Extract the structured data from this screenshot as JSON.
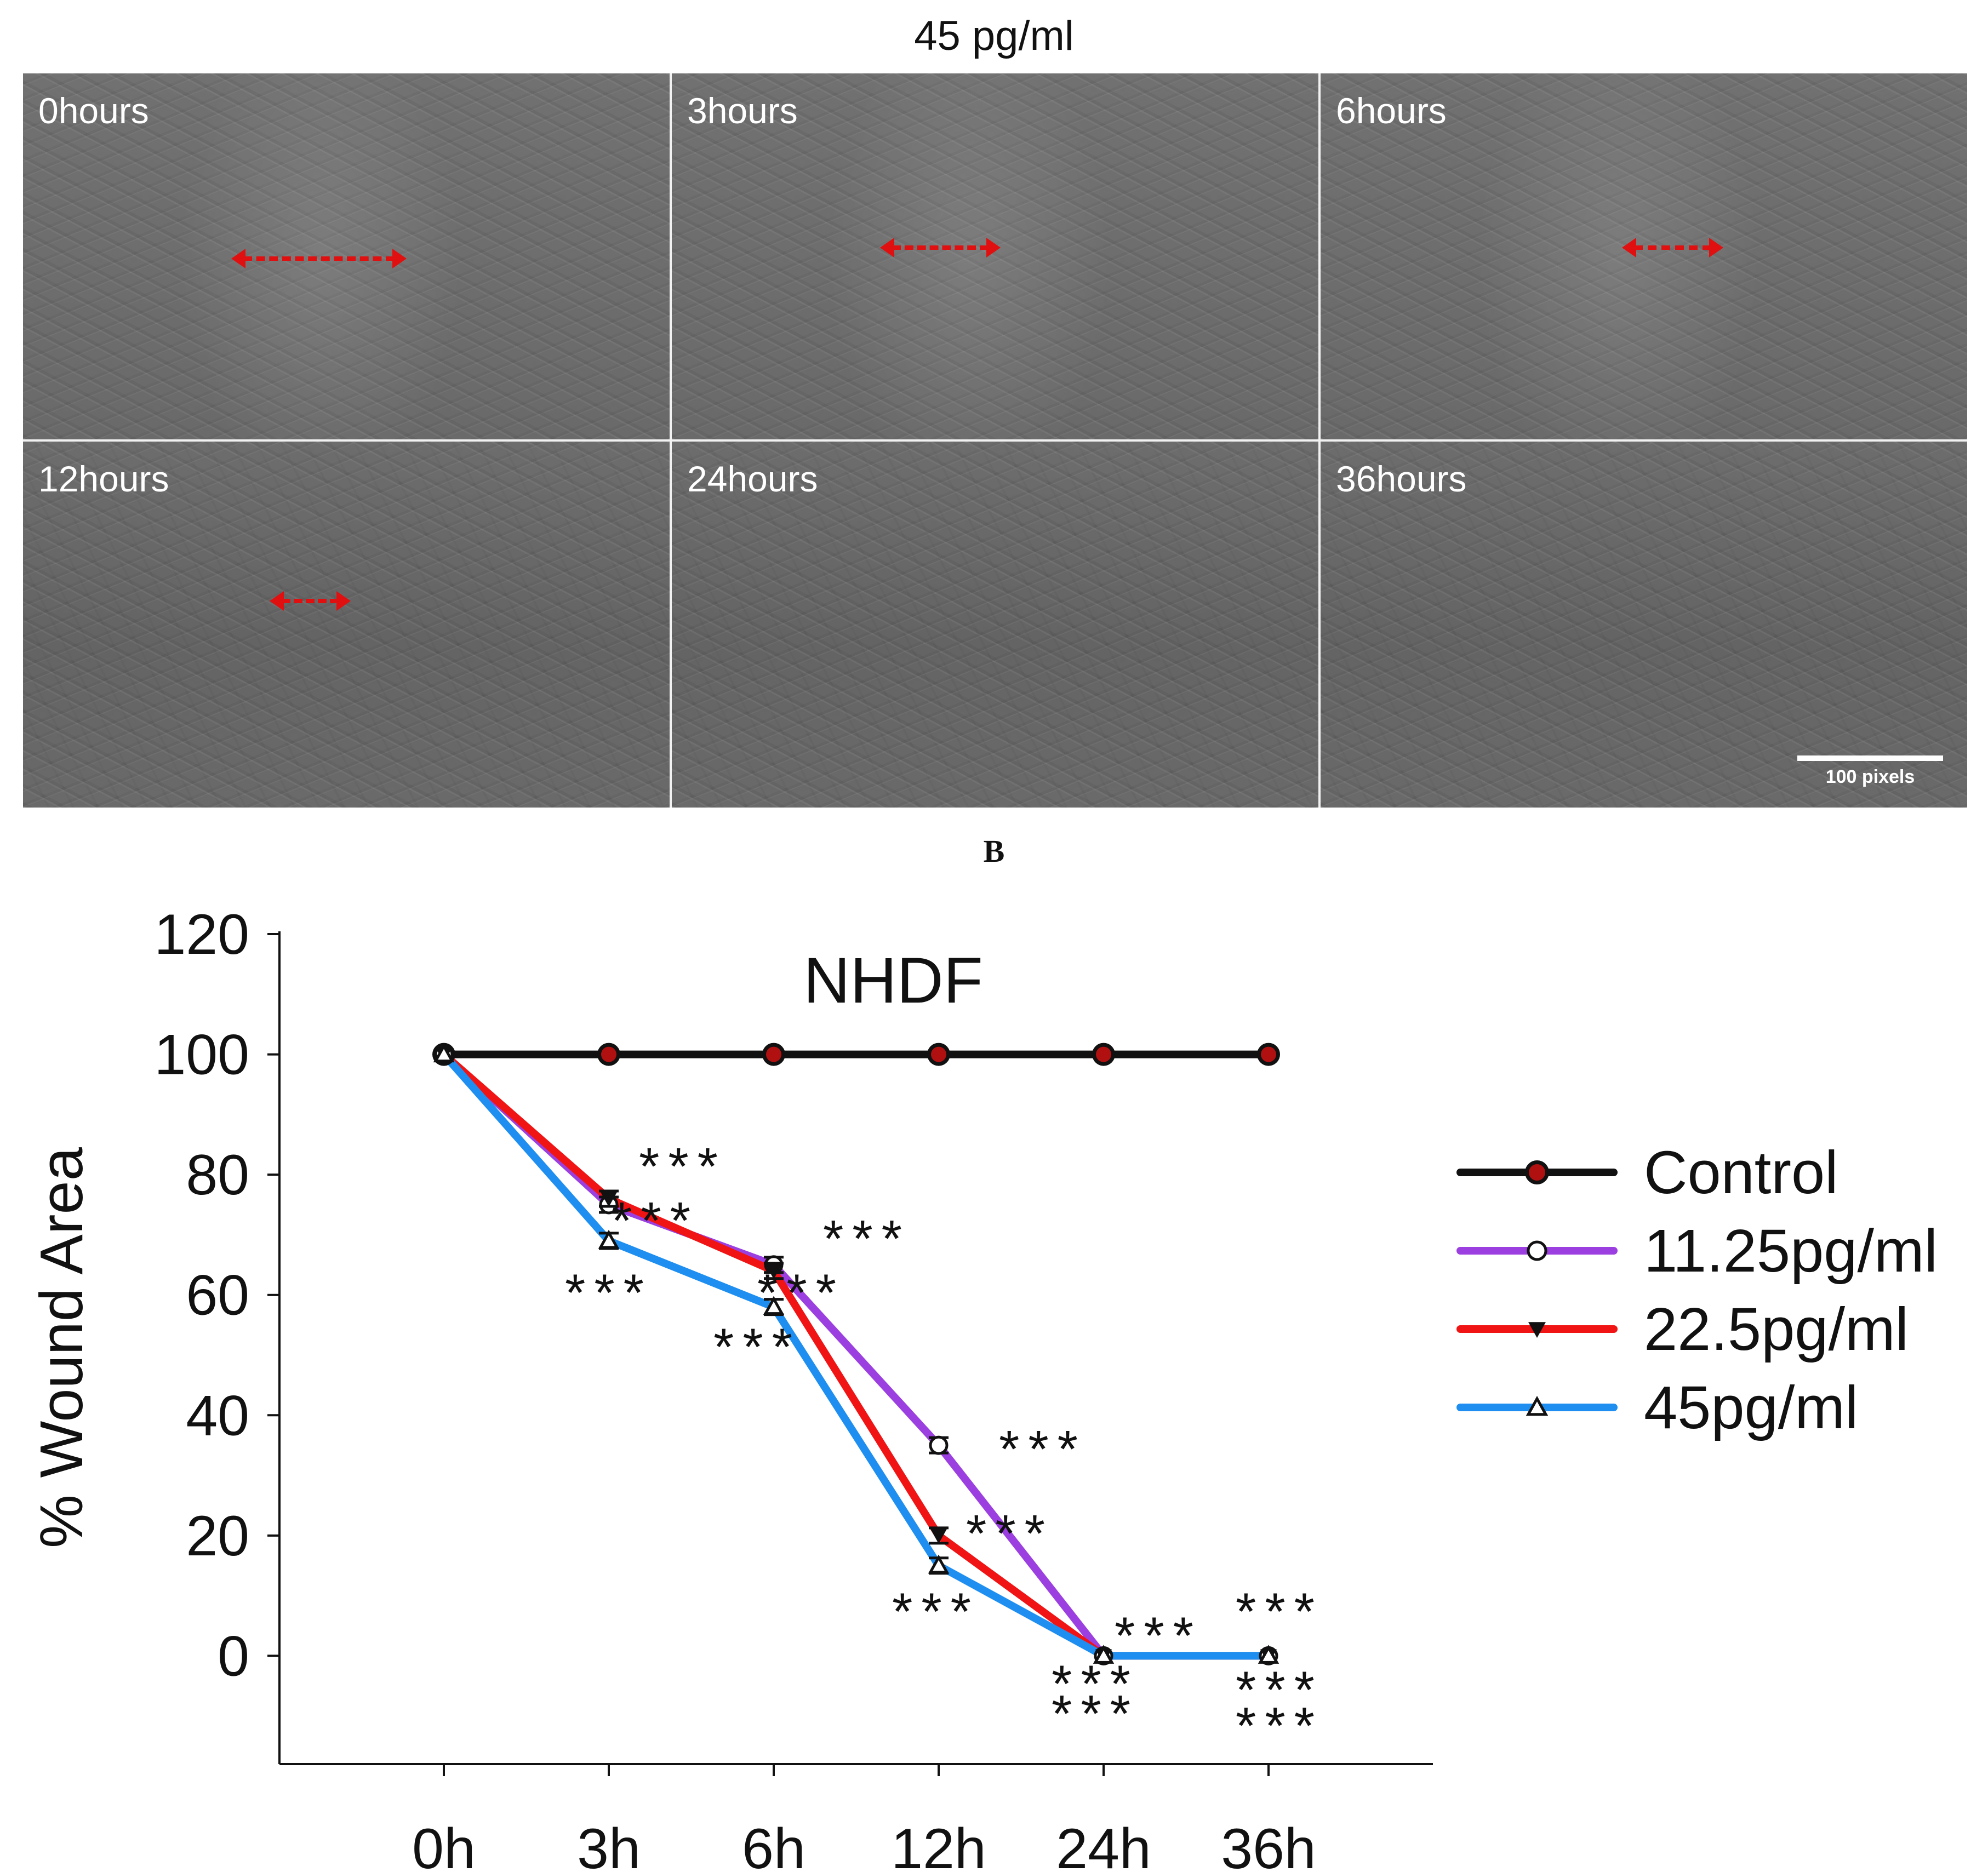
{
  "figure": {
    "top_title": "45 pg/ml",
    "panels": [
      {
        "label": "0hours",
        "arrow": true
      },
      {
        "label": "3hours",
        "arrow": true
      },
      {
        "label": "6hours",
        "arrow": true
      },
      {
        "label": "12hours",
        "arrow": true
      },
      {
        "label": "24hours",
        "arrow": false
      },
      {
        "label": "36hours",
        "arrow": false
      }
    ],
    "scale_bar_label": "100 pixels",
    "panel_b_label": "B"
  },
  "colors": {
    "control": "#111111",
    "c11": "#9b3fe0",
    "c22": "#f01414",
    "c45": "#1e8ff0",
    "arrow": "#e01010"
  },
  "chart_data": {
    "type": "line",
    "title": "NHDF",
    "xlabel": "",
    "ylabel": "% Wound Area",
    "categories": [
      "0h",
      "3h",
      "6h",
      "12h",
      "24h",
      "36h"
    ],
    "yticks": [
      0,
      20,
      40,
      60,
      80,
      100,
      120
    ],
    "ylim": [
      -18,
      120
    ],
    "legend_position": "right",
    "series": [
      {
        "name": "Control",
        "marker": "filled-circle",
        "values": [
          100,
          100,
          100,
          100,
          100,
          100
        ]
      },
      {
        "name": "11.25pg/ml",
        "marker": "open-circle",
        "values": [
          100,
          75,
          65,
          35,
          0,
          0
        ]
      },
      {
        "name": "22.5pg/ml",
        "marker": "filled-triangle-down",
        "values": [
          100,
          76,
          64,
          20,
          0,
          0
        ]
      },
      {
        "name": "45pg/ml",
        "marker": "open-triangle-up",
        "values": [
          100,
          69,
          58,
          15,
          0,
          0
        ]
      }
    ],
    "annotations": [
      {
        "text": "***",
        "x_index": 1,
        "y": 82
      },
      {
        "text": "***",
        "x_index": 1,
        "y": 73
      },
      {
        "text": "***",
        "x_index": 1,
        "y": 61
      },
      {
        "text": "***",
        "x_index": 2,
        "y": 70
      },
      {
        "text": "***",
        "x_index": 2,
        "y": 61
      },
      {
        "text": "***",
        "x_index": 2,
        "y": 52
      },
      {
        "text": "***",
        "x_index": 3,
        "y": 35
      },
      {
        "text": "***",
        "x_index": 3,
        "y": 21
      },
      {
        "text": "***",
        "x_index": 3,
        "y": 8
      },
      {
        "text": "***",
        "x_index": 4,
        "y": 4
      },
      {
        "text": "***",
        "x_index": 4,
        "y": -4
      },
      {
        "text": "***",
        "x_index": 4,
        "y": -9
      },
      {
        "text": "***",
        "x_index": 5,
        "y": 8
      },
      {
        "text": "***",
        "x_index": 5,
        "y": -5
      },
      {
        "text": "***",
        "x_index": 5,
        "y": -11
      }
    ]
  }
}
